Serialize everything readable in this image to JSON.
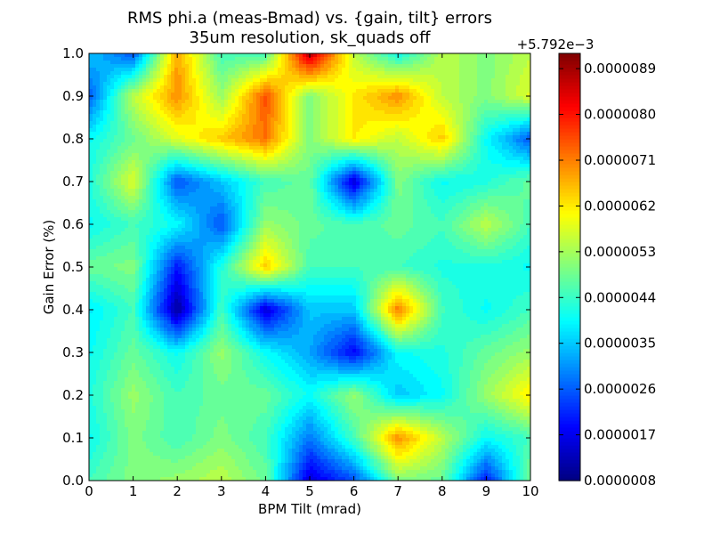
{
  "chart_data": {
    "type": "heatmap",
    "title": "RMS phi.a (meas-Bmad) vs. {gain, tilt} errors",
    "subtitle": "35um resolution, sk_quads off",
    "xlabel": "BPM Tilt (mrad)",
    "ylabel": "Gain Error (%)",
    "xlim": [
      0,
      10
    ],
    "ylim": [
      0,
      1.0
    ],
    "x_ticks": [
      "0",
      "1",
      "2",
      "3",
      "4",
      "5",
      "6",
      "7",
      "8",
      "9",
      "10"
    ],
    "y_ticks": [
      "0.0",
      "0.1",
      "0.2",
      "0.3",
      "0.4",
      "0.5",
      "0.6",
      "0.7",
      "0.8",
      "0.9",
      "1.0"
    ],
    "x": [
      0,
      1,
      2,
      3,
      4,
      5,
      6,
      7,
      8,
      9,
      10
    ],
    "y": [
      0.0,
      0.1,
      0.2,
      0.3,
      0.4,
      0.5,
      0.6,
      0.7,
      0.8,
      0.9,
      1.0
    ],
    "z_units_note": "values in units of 1e-7 relative to offset +5.792e-3",
    "z": [
      [
        45,
        50,
        52,
        55,
        48,
        15,
        25,
        50,
        48,
        20,
        50
      ],
      [
        40,
        50,
        45,
        50,
        45,
        28,
        45,
        70,
        55,
        40,
        45
      ],
      [
        42,
        52,
        45,
        48,
        48,
        40,
        52,
        35,
        40,
        52,
        62
      ],
      [
        40,
        48,
        40,
        52,
        40,
        32,
        18,
        40,
        42,
        48,
        52
      ],
      [
        38,
        45,
        10,
        45,
        15,
        35,
        35,
        72,
        45,
        40,
        45
      ],
      [
        48,
        50,
        20,
        42,
        65,
        45,
        45,
        45,
        42,
        42,
        40
      ],
      [
        40,
        45,
        40,
        25,
        52,
        48,
        45,
        48,
        45,
        55,
        45
      ],
      [
        42,
        58,
        25,
        35,
        45,
        48,
        15,
        50,
        40,
        42,
        48
      ],
      [
        40,
        48,
        58,
        65,
        72,
        50,
        62,
        55,
        65,
        40,
        25
      ],
      [
        25,
        55,
        70,
        52,
        75,
        50,
        62,
        70,
        55,
        50,
        58
      ],
      [
        35,
        25,
        68,
        45,
        45,
        88,
        55,
        40,
        55,
        50,
        55
      ]
    ],
    "colorbar": {
      "offset_label": "+5.792e−3",
      "min": 8,
      "max": 92,
      "ticks": [
        8,
        17,
        26,
        35,
        44,
        53,
        62,
        71,
        80,
        89
      ],
      "tick_labels": [
        "0.0000008",
        "0.0000017",
        "0.0000026",
        "0.0000035",
        "0.0000044",
        "0.0000053",
        "0.0000062",
        "0.0000071",
        "0.0000080",
        "0.0000089"
      ],
      "colormap": "jet"
    }
  }
}
